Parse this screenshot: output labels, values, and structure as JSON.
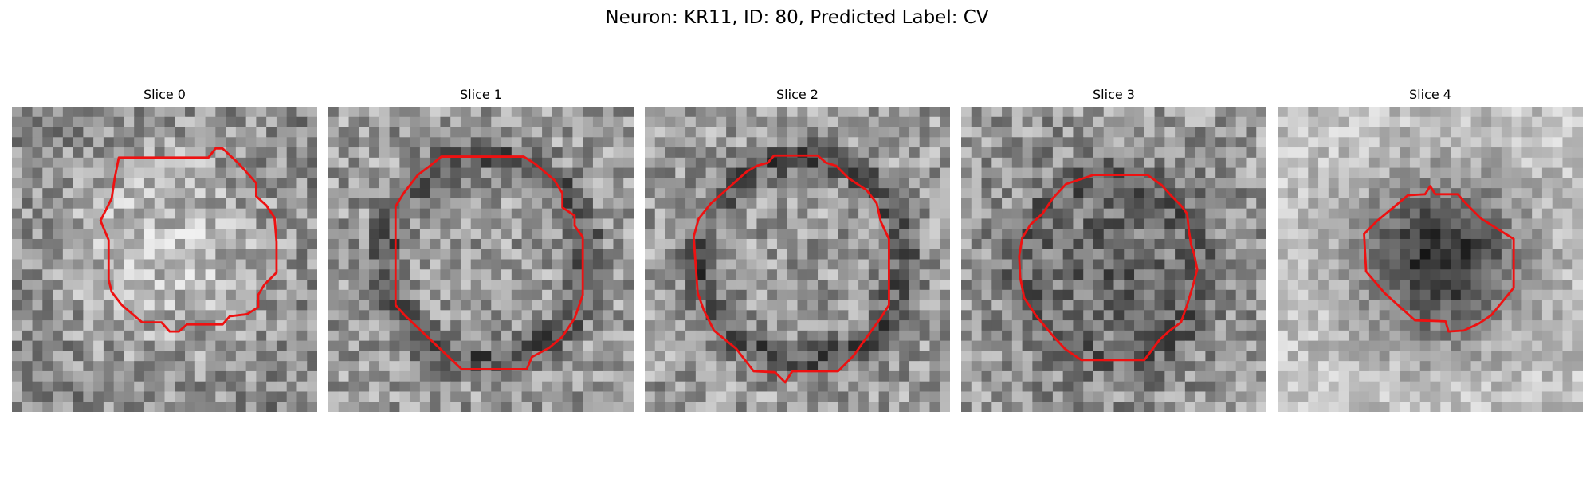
{
  "figure": {
    "suptitle": "Neuron: KR11, ID: 80, Predicted Label: CV",
    "contour_color": "#ee1111"
  },
  "panels": [
    {
      "title": "Slice 0",
      "image": "grayscale-em-patch",
      "center_brightness": "light"
    },
    {
      "title": "Slice 1",
      "image": "grayscale-em-patch",
      "center_brightness": "medium"
    },
    {
      "title": "Slice 2",
      "image": "grayscale-em-patch",
      "center_brightness": "medium"
    },
    {
      "title": "Slice 3",
      "image": "grayscale-em-patch",
      "center_brightness": "dark"
    },
    {
      "title": "Slice 4",
      "image": "grayscale-em-patch",
      "center_brightness": "very-dark"
    }
  ]
}
